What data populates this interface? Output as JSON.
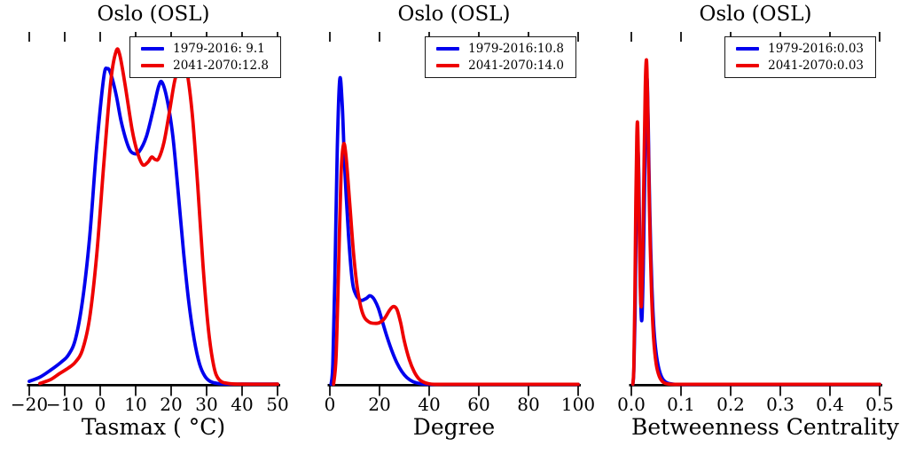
{
  "chart_data": [
    {
      "type": "line",
      "subtype": "kde-density",
      "title": "Oslo (OSL)",
      "xlabel": "Tasmax ( °C)",
      "ylabel": "",
      "xlim": [
        -20,
        50
      ],
      "xticks": [
        -20,
        -10,
        0,
        10,
        20,
        30,
        40,
        50
      ],
      "xtick_labels": [
        "−20",
        "−10",
        "0",
        "10",
        "20",
        "30",
        "40",
        "50"
      ],
      "grid": false,
      "y_axis_visible": false,
      "legend_location": "upper right",
      "series": [
        {
          "name": "1979-2016",
          "legend_label": "1979-2016: 9.1",
          "mean": 9.1,
          "color": "#0000ee",
          "x": [
            -20,
            -17,
            -14,
            -11,
            -9,
            -7,
            -5,
            -3,
            -1,
            1,
            2,
            3,
            4.5,
            6,
            8,
            9.5,
            11,
            13,
            15,
            16.5,
            17.5,
            19,
            20.5,
            22,
            23.5,
            25,
            26.5,
            28,
            29.5,
            31,
            33,
            36,
            40,
            50
          ],
          "y": [
            0.01,
            0.022,
            0.042,
            0.065,
            0.085,
            0.13,
            0.24,
            0.42,
            0.68,
            0.88,
            0.905,
            0.89,
            0.83,
            0.75,
            0.68,
            0.662,
            0.668,
            0.71,
            0.79,
            0.855,
            0.865,
            0.81,
            0.71,
            0.55,
            0.38,
            0.235,
            0.13,
            0.06,
            0.025,
            0.01,
            0.004,
            0.002,
            0.002,
            0.002
          ]
        },
        {
          "name": "2041-2070",
          "legend_label": "2041-2070:12.8",
          "mean": 12.8,
          "color": "#ee0000",
          "x": [
            -17,
            -14,
            -11.5,
            -9,
            -7,
            -5,
            -3,
            -1,
            1,
            3,
            4.5,
            5.5,
            7,
            9,
            10.5,
            12,
            13.5,
            14.5,
            15.5,
            16.5,
            18,
            19.5,
            21,
            22.5,
            23.5,
            24.5,
            26,
            27.5,
            29,
            30.5,
            32,
            33.5,
            36,
            40,
            50
          ],
          "y": [
            0.004,
            0.015,
            0.032,
            0.048,
            0.065,
            0.1,
            0.19,
            0.37,
            0.63,
            0.87,
            0.955,
            0.945,
            0.86,
            0.73,
            0.665,
            0.63,
            0.638,
            0.652,
            0.645,
            0.648,
            0.695,
            0.78,
            0.87,
            0.92,
            0.925,
            0.895,
            0.77,
            0.57,
            0.34,
            0.16,
            0.055,
            0.015,
            0.004,
            0.002,
            0.002
          ]
        }
      ]
    },
    {
      "type": "line",
      "subtype": "kde-density",
      "title": "Oslo (OSL)",
      "xlabel": "Degree",
      "ylabel": "",
      "xlim": [
        0,
        100
      ],
      "xticks": [
        0,
        20,
        40,
        60,
        80,
        100
      ],
      "xtick_labels": [
        "0",
        "20",
        "40",
        "60",
        "80",
        "100"
      ],
      "grid": false,
      "y_axis_visible": false,
      "legend_location": "upper right",
      "series": [
        {
          "name": "1979-2016",
          "legend_label": "1979-2016:10.8",
          "mean": 10.8,
          "color": "#0000ee",
          "x": [
            0.5,
            1.2,
            2,
            3,
            4,
            5,
            6,
            7.5,
            9,
            10.5,
            12.5,
            14,
            15,
            16,
            17,
            18,
            19.5,
            21,
            23,
            25,
            27,
            29,
            31,
            33.5,
            36,
            38,
            40,
            45,
            60,
            80,
            100
          ],
          "y": [
            0.002,
            0.06,
            0.3,
            0.68,
            0.875,
            0.8,
            0.62,
            0.43,
            0.3,
            0.258,
            0.242,
            0.245,
            0.249,
            0.255,
            0.252,
            0.243,
            0.22,
            0.185,
            0.138,
            0.097,
            0.063,
            0.038,
            0.021,
            0.009,
            0.004,
            0.002,
            0.0015,
            0.0015,
            0.0015,
            0.0015,
            0.0015
          ]
        },
        {
          "name": "2041-2070",
          "legend_label": "2041-2070:14.0",
          "mean": 14.0,
          "color": "#ee0000",
          "x": [
            1.5,
            2.5,
            3.5,
            4.5,
            5.5,
            6.5,
            8,
            9.5,
            11,
            12.5,
            14,
            16,
            18,
            20,
            22,
            24,
            25.5,
            27,
            28.5,
            30,
            32,
            34,
            36,
            38,
            40,
            42,
            46,
            60,
            80,
            100
          ],
          "y": [
            0.002,
            0.08,
            0.33,
            0.6,
            0.688,
            0.655,
            0.52,
            0.38,
            0.28,
            0.222,
            0.192,
            0.179,
            0.176,
            0.178,
            0.19,
            0.213,
            0.224,
            0.216,
            0.178,
            0.125,
            0.072,
            0.037,
            0.016,
            0.007,
            0.003,
            0.0015,
            0.0015,
            0.0015,
            0.0015,
            0.0015
          ]
        }
      ]
    },
    {
      "type": "line",
      "subtype": "kde-density",
      "title": "Oslo (OSL)",
      "xlabel": "Betweenness Centrality",
      "ylabel": "",
      "xlim": [
        0,
        0.5
      ],
      "xticks": [
        0,
        0.1,
        0.2,
        0.3,
        0.4,
        0.5
      ],
      "xtick_labels": [
        "0.0",
        "0.1",
        "0.2",
        "0.3",
        "0.4",
        "0.5"
      ],
      "grid": false,
      "y_axis_visible": false,
      "legend_location": "upper right",
      "series": [
        {
          "name": "1979-2016",
          "legend_label": "1979-2016:0.03",
          "mean": 0.03,
          "color": "#0000ee",
          "x": [
            0.003,
            0.005,
            0.0075,
            0.0095,
            0.0115,
            0.013,
            0.015,
            0.017,
            0.019,
            0.0205,
            0.022,
            0.024,
            0.027,
            0.029,
            0.031,
            0.0325,
            0.034,
            0.036,
            0.039,
            0.042,
            0.046,
            0.051,
            0.057,
            0.064,
            0.073,
            0.085,
            0.1,
            0.15,
            0.3,
            0.5
          ],
          "y": [
            0.002,
            0.04,
            0.2,
            0.45,
            0.63,
            0.68,
            0.6,
            0.4,
            0.24,
            0.185,
            0.21,
            0.33,
            0.6,
            0.78,
            0.875,
            0.85,
            0.75,
            0.58,
            0.39,
            0.26,
            0.15,
            0.08,
            0.038,
            0.015,
            0.005,
            0.002,
            0.0015,
            0.0015,
            0.0015,
            0.0015
          ]
        },
        {
          "name": "2041-2070",
          "legend_label": "2041-2070:0.03",
          "mean": 0.03,
          "color": "#ee0000",
          "x": [
            0.003,
            0.005,
            0.007,
            0.009,
            0.011,
            0.0125,
            0.014,
            0.016,
            0.018,
            0.0195,
            0.021,
            0.023,
            0.026,
            0.028,
            0.03,
            0.0315,
            0.033,
            0.035,
            0.038,
            0.041,
            0.045,
            0.05,
            0.056,
            0.063,
            0.072,
            0.085,
            0.1,
            0.15,
            0.3,
            0.5
          ],
          "y": [
            0.002,
            0.05,
            0.24,
            0.52,
            0.71,
            0.75,
            0.66,
            0.44,
            0.28,
            0.225,
            0.25,
            0.38,
            0.67,
            0.85,
            0.928,
            0.9,
            0.8,
            0.62,
            0.4,
            0.25,
            0.13,
            0.06,
            0.025,
            0.009,
            0.003,
            0.0015,
            0.0015,
            0.0015,
            0.0015,
            0.0015
          ]
        }
      ]
    }
  ]
}
